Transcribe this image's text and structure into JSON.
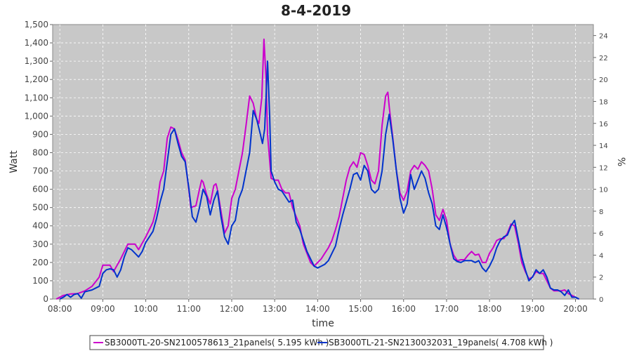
{
  "chart_data": {
    "type": "line",
    "title": "8-4-2019",
    "xlabel": "time",
    "ylabel": "Watt",
    "y2label": "%",
    "ylim": [
      0,
      1500
    ],
    "y2lim": [
      0,
      25
    ],
    "xlim": [
      "07:50",
      "20:25"
    ],
    "yticks": [
      "0",
      "100",
      "200",
      "300",
      "400",
      "500",
      "600",
      "700",
      "800",
      "900",
      "1,000",
      "1,100",
      "1,200",
      "1,300",
      "1,400",
      "1,500"
    ],
    "y2ticks": [
      "0",
      "2",
      "4",
      "6",
      "8",
      "10",
      "12",
      "14",
      "16",
      "18",
      "20",
      "22",
      "24"
    ],
    "xticks": [
      "08:00",
      "09:00",
      "10:00",
      "11:00",
      "12:00",
      "13:00",
      "14:00",
      "15:00",
      "16:00",
      "17:00",
      "18:00",
      "19:00",
      "20:00"
    ],
    "grid": true,
    "legend_position": "bottom",
    "series": [
      {
        "name": "SB3000TL-20-SN2100578613_21panels( 5.195 kWh )",
        "color": "#cc00cc",
        "points": [
          [
            "07:55",
            0
          ],
          [
            "08:05",
            20
          ],
          [
            "08:15",
            28
          ],
          [
            "08:25",
            30
          ],
          [
            "08:35",
            45
          ],
          [
            "08:45",
            70
          ],
          [
            "08:55",
            120
          ],
          [
            "09:00",
            185
          ],
          [
            "09:10",
            185
          ],
          [
            "09:15",
            150
          ],
          [
            "09:25",
            220
          ],
          [
            "09:35",
            300
          ],
          [
            "09:45",
            300
          ],
          [
            "09:50",
            270
          ],
          [
            "10:00",
            340
          ],
          [
            "10:10",
            420
          ],
          [
            "10:15",
            500
          ],
          [
            "10:20",
            640
          ],
          [
            "10:25",
            700
          ],
          [
            "10:30",
            880
          ],
          [
            "10:35",
            940
          ],
          [
            "10:40",
            930
          ],
          [
            "10:45",
            870
          ],
          [
            "10:50",
            800
          ],
          [
            "10:55",
            760
          ],
          [
            "11:00",
            600
          ],
          [
            "11:03",
            500
          ],
          [
            "11:10",
            510
          ],
          [
            "11:15",
            600
          ],
          [
            "11:18",
            650
          ],
          [
            "11:20",
            640
          ],
          [
            "11:25",
            570
          ],
          [
            "11:30",
            520
          ],
          [
            "11:35",
            620
          ],
          [
            "11:38",
            630
          ],
          [
            "11:40",
            600
          ],
          [
            "11:45",
            480
          ],
          [
            "11:50",
            360
          ],
          [
            "11:55",
            400
          ],
          [
            "12:00",
            550
          ],
          [
            "12:05",
            600
          ],
          [
            "12:10",
            700
          ],
          [
            "12:15",
            800
          ],
          [
            "12:20",
            950
          ],
          [
            "12:25",
            1110
          ],
          [
            "12:30",
            1070
          ],
          [
            "12:35",
            980
          ],
          [
            "12:38",
            960
          ],
          [
            "12:42",
            1100
          ],
          [
            "12:45",
            1420
          ],
          [
            "12:48",
            1200
          ],
          [
            "12:50",
            900
          ],
          [
            "12:55",
            660
          ],
          [
            "13:00",
            650
          ],
          [
            "13:05",
            650
          ],
          [
            "13:10",
            600
          ],
          [
            "13:15",
            580
          ],
          [
            "13:20",
            580
          ],
          [
            "13:25",
            500
          ],
          [
            "13:30",
            450
          ],
          [
            "13:35",
            400
          ],
          [
            "13:40",
            300
          ],
          [
            "13:45",
            250
          ],
          [
            "13:50",
            200
          ],
          [
            "13:55",
            180
          ],
          [
            "14:00",
            200
          ],
          [
            "14:05",
            220
          ],
          [
            "14:10",
            250
          ],
          [
            "14:15",
            280
          ],
          [
            "14:20",
            320
          ],
          [
            "14:25",
            380
          ],
          [
            "14:30",
            450
          ],
          [
            "14:35",
            550
          ],
          [
            "14:40",
            650
          ],
          [
            "14:45",
            720
          ],
          [
            "14:50",
            750
          ],
          [
            "14:55",
            720
          ],
          [
            "15:00",
            800
          ],
          [
            "15:05",
            790
          ],
          [
            "15:10",
            730
          ],
          [
            "15:15",
            650
          ],
          [
            "15:20",
            630
          ],
          [
            "15:25",
            700
          ],
          [
            "15:30",
            950
          ],
          [
            "15:35",
            1110
          ],
          [
            "15:38",
            1130
          ],
          [
            "15:40",
            1050
          ],
          [
            "15:45",
            880
          ],
          [
            "15:50",
            700
          ],
          [
            "15:55",
            580
          ],
          [
            "16:00",
            540
          ],
          [
            "16:05",
            590
          ],
          [
            "16:10",
            700
          ],
          [
            "16:15",
            730
          ],
          [
            "16:20",
            710
          ],
          [
            "16:25",
            750
          ],
          [
            "16:30",
            730
          ],
          [
            "16:35",
            700
          ],
          [
            "16:40",
            600
          ],
          [
            "16:45",
            460
          ],
          [
            "16:50",
            430
          ],
          [
            "16:55",
            490
          ],
          [
            "17:00",
            430
          ],
          [
            "17:05",
            300
          ],
          [
            "17:10",
            240
          ],
          [
            "17:15",
            210
          ],
          [
            "17:20",
            215
          ],
          [
            "17:25",
            215
          ],
          [
            "17:30",
            240
          ],
          [
            "17:35",
            260
          ],
          [
            "17:40",
            240
          ],
          [
            "17:45",
            245
          ],
          [
            "17:50",
            200
          ],
          [
            "17:55",
            200
          ],
          [
            "18:00",
            250
          ],
          [
            "18:05",
            280
          ],
          [
            "18:10",
            320
          ],
          [
            "18:15",
            330
          ],
          [
            "18:20",
            330
          ],
          [
            "18:25",
            360
          ],
          [
            "18:30",
            410
          ],
          [
            "18:35",
            400
          ],
          [
            "18:40",
            310
          ],
          [
            "18:45",
            200
          ],
          [
            "18:50",
            150
          ],
          [
            "18:55",
            110
          ],
          [
            "19:00",
            120
          ],
          [
            "19:05",
            150
          ],
          [
            "19:10",
            140
          ],
          [
            "19:15",
            140
          ],
          [
            "19:20",
            100
          ],
          [
            "19:25",
            60
          ],
          [
            "19:30",
            45
          ],
          [
            "19:35",
            45
          ],
          [
            "19:40",
            45
          ],
          [
            "19:45",
            50
          ],
          [
            "19:50",
            30
          ],
          [
            "19:55",
            20
          ],
          [
            "20:00",
            10
          ],
          [
            "20:05",
            0
          ]
        ]
      },
      {
        "name": "SB3000TL-21-SN2130032031_19panels( 4.708 kWh )",
        "color": "#0033cc",
        "points": [
          [
            "08:00",
            0
          ],
          [
            "08:05",
            10
          ],
          [
            "08:10",
            25
          ],
          [
            "08:15",
            10
          ],
          [
            "08:20",
            25
          ],
          [
            "08:25",
            30
          ],
          [
            "08:30",
            5
          ],
          [
            "08:35",
            40
          ],
          [
            "08:40",
            45
          ],
          [
            "08:45",
            50
          ],
          [
            "08:55",
            70
          ],
          [
            "09:00",
            140
          ],
          [
            "09:05",
            160
          ],
          [
            "09:10",
            165
          ],
          [
            "09:15",
            160
          ],
          [
            "09:20",
            120
          ],
          [
            "09:25",
            160
          ],
          [
            "09:30",
            230
          ],
          [
            "09:35",
            280
          ],
          [
            "09:40",
            270
          ],
          [
            "09:45",
            250
          ],
          [
            "09:50",
            230
          ],
          [
            "09:55",
            260
          ],
          [
            "10:00",
            310
          ],
          [
            "10:05",
            340
          ],
          [
            "10:10",
            370
          ],
          [
            "10:15",
            440
          ],
          [
            "10:20",
            530
          ],
          [
            "10:25",
            600
          ],
          [
            "10:30",
            750
          ],
          [
            "10:35",
            900
          ],
          [
            "10:40",
            930
          ],
          [
            "10:45",
            850
          ],
          [
            "10:50",
            780
          ],
          [
            "10:55",
            750
          ],
          [
            "11:00",
            610
          ],
          [
            "11:05",
            450
          ],
          [
            "11:10",
            420
          ],
          [
            "11:15",
            500
          ],
          [
            "11:20",
            600
          ],
          [
            "11:25",
            560
          ],
          [
            "11:30",
            460
          ],
          [
            "11:35",
            540
          ],
          [
            "11:40",
            590
          ],
          [
            "11:45",
            450
          ],
          [
            "11:50",
            340
          ],
          [
            "11:55",
            300
          ],
          [
            "12:00",
            400
          ],
          [
            "12:05",
            430
          ],
          [
            "12:10",
            550
          ],
          [
            "12:15",
            600
          ],
          [
            "12:20",
            700
          ],
          [
            "12:25",
            800
          ],
          [
            "12:30",
            1030
          ],
          [
            "12:35",
            980
          ],
          [
            "12:40",
            900
          ],
          [
            "12:43",
            850
          ],
          [
            "12:46",
            930
          ],
          [
            "12:50",
            1300
          ],
          [
            "12:53",
            1000
          ],
          [
            "12:55",
            700
          ],
          [
            "13:00",
            640
          ],
          [
            "13:05",
            600
          ],
          [
            "13:10",
            590
          ],
          [
            "13:15",
            560
          ],
          [
            "13:20",
            530
          ],
          [
            "13:25",
            540
          ],
          [
            "13:30",
            420
          ],
          [
            "13:35",
            380
          ],
          [
            "13:40",
            320
          ],
          [
            "13:45",
            260
          ],
          [
            "13:50",
            220
          ],
          [
            "13:55",
            180
          ],
          [
            "14:00",
            170
          ],
          [
            "14:05",
            180
          ],
          [
            "14:10",
            190
          ],
          [
            "14:15",
            210
          ],
          [
            "14:20",
            250
          ],
          [
            "14:25",
            290
          ],
          [
            "14:30",
            380
          ],
          [
            "14:35",
            460
          ],
          [
            "14:40",
            530
          ],
          [
            "14:45",
            600
          ],
          [
            "14:50",
            680
          ],
          [
            "14:55",
            690
          ],
          [
            "15:00",
            650
          ],
          [
            "15:05",
            730
          ],
          [
            "15:10",
            700
          ],
          [
            "15:15",
            600
          ],
          [
            "15:20",
            580
          ],
          [
            "15:25",
            600
          ],
          [
            "15:30",
            700
          ],
          [
            "15:35",
            900
          ],
          [
            "15:40",
            1010
          ],
          [
            "15:45",
            870
          ],
          [
            "15:50",
            700
          ],
          [
            "15:55",
            550
          ],
          [
            "16:00",
            470
          ],
          [
            "16:05",
            520
          ],
          [
            "16:10",
            680
          ],
          [
            "16:15",
            600
          ],
          [
            "16:20",
            650
          ],
          [
            "16:25",
            700
          ],
          [
            "16:30",
            660
          ],
          [
            "16:35",
            580
          ],
          [
            "16:40",
            520
          ],
          [
            "16:45",
            400
          ],
          [
            "16:50",
            380
          ],
          [
            "16:55",
            460
          ],
          [
            "17:00",
            390
          ],
          [
            "17:05",
            300
          ],
          [
            "17:10",
            220
          ],
          [
            "17:15",
            205
          ],
          [
            "17:20",
            200
          ],
          [
            "17:25",
            210
          ],
          [
            "17:30",
            210
          ],
          [
            "17:35",
            210
          ],
          [
            "17:40",
            200
          ],
          [
            "17:45",
            210
          ],
          [
            "17:50",
            170
          ],
          [
            "17:55",
            150
          ],
          [
            "18:00",
            180
          ],
          [
            "18:05",
            220
          ],
          [
            "18:10",
            280
          ],
          [
            "18:15",
            320
          ],
          [
            "18:20",
            340
          ],
          [
            "18:25",
            350
          ],
          [
            "18:30",
            400
          ],
          [
            "18:35",
            430
          ],
          [
            "18:40",
            330
          ],
          [
            "18:45",
            230
          ],
          [
            "18:50",
            160
          ],
          [
            "18:55",
            100
          ],
          [
            "19:00",
            120
          ],
          [
            "19:05",
            160
          ],
          [
            "19:10",
            140
          ],
          [
            "19:15",
            160
          ],
          [
            "19:20",
            120
          ],
          [
            "19:25",
            60
          ],
          [
            "19:30",
            50
          ],
          [
            "19:35",
            50
          ],
          [
            "19:40",
            40
          ],
          [
            "19:45",
            20
          ],
          [
            "19:50",
            50
          ],
          [
            "19:55",
            10
          ],
          [
            "20:00",
            10
          ],
          [
            "20:05",
            0
          ]
        ]
      }
    ]
  }
}
